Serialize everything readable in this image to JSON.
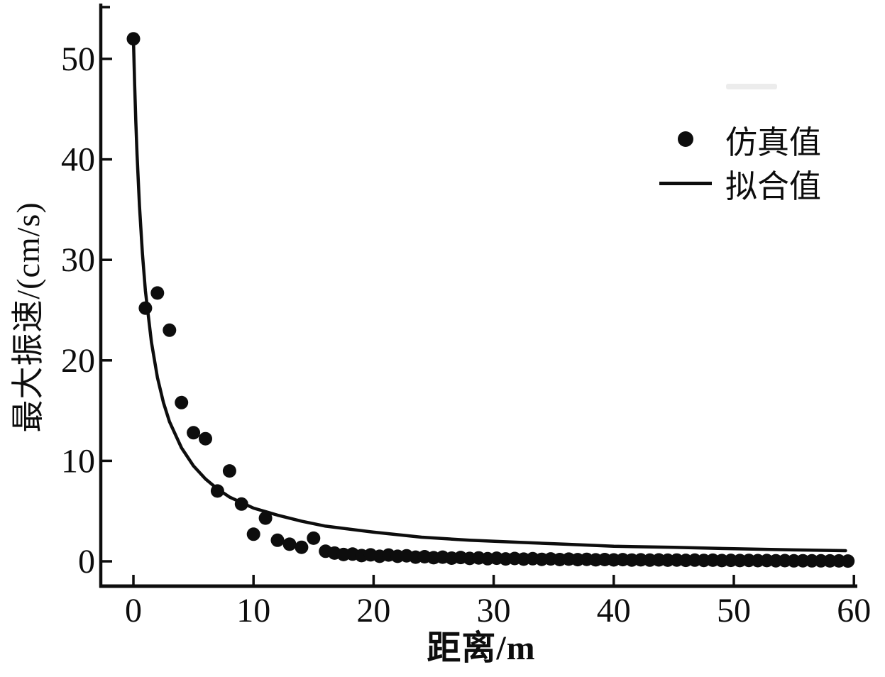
{
  "figure": {
    "background": "#ffffff",
    "ink_color": "#0d0d0d"
  },
  "chart_data": {
    "type": "scatter",
    "title": "",
    "xlabel": "距离/m",
    "ylabel": "最大振速/(cm/s)",
    "xlim": [
      -2.8,
      60.3
    ],
    "ylim": [
      -2.6,
      55.5
    ],
    "x_ticks": [
      0,
      10,
      20,
      30,
      40,
      50,
      60
    ],
    "y_ticks": [
      0,
      10,
      20,
      30,
      40,
      50
    ],
    "grid": false,
    "legend_position": "upper right",
    "series": [
      {
        "name": "仿真值",
        "type": "scatter",
        "marker": "filled-circle",
        "color": "#0d0d0d",
        "points": [
          [
            0,
            52
          ],
          [
            1,
            25.2
          ],
          [
            2,
            26.7
          ],
          [
            3,
            23.0
          ],
          [
            4,
            15.8
          ],
          [
            5,
            12.8
          ],
          [
            6,
            12.2
          ],
          [
            7,
            7.0
          ],
          [
            8,
            9.0
          ],
          [
            9,
            5.7
          ],
          [
            10,
            2.7
          ],
          [
            11,
            4.3
          ],
          [
            12,
            2.1
          ],
          [
            13,
            1.7
          ],
          [
            14,
            1.4
          ],
          [
            15,
            2.3
          ],
          [
            16,
            1.0
          ],
          [
            16.75,
            0.82
          ],
          [
            17.5,
            0.68
          ],
          [
            18.25,
            0.72
          ],
          [
            19,
            0.57
          ],
          [
            19.75,
            0.64
          ],
          [
            20.5,
            0.5
          ],
          [
            21.25,
            0.63
          ],
          [
            22,
            0.5
          ],
          [
            22.75,
            0.55
          ],
          [
            23.5,
            0.42
          ],
          [
            24.25,
            0.46
          ],
          [
            25,
            0.36
          ],
          [
            25.75,
            0.42
          ],
          [
            26.5,
            0.32
          ],
          [
            27.25,
            0.38
          ],
          [
            28,
            0.29
          ],
          [
            28.75,
            0.34
          ],
          [
            29.5,
            0.26
          ],
          [
            30.25,
            0.31
          ],
          [
            31,
            0.24
          ],
          [
            31.75,
            0.28
          ],
          [
            32.5,
            0.22
          ],
          [
            33.25,
            0.26
          ],
          [
            34,
            0.2
          ],
          [
            34.75,
            0.24
          ],
          [
            35.5,
            0.18
          ],
          [
            36.25,
            0.22
          ],
          [
            37,
            0.17
          ],
          [
            37.75,
            0.2
          ],
          [
            38.5,
            0.15
          ],
          [
            39.25,
            0.18
          ],
          [
            40,
            0.14
          ],
          [
            40.75,
            0.17
          ],
          [
            41.5,
            0.13
          ],
          [
            42.25,
            0.15
          ],
          [
            43,
            0.12
          ],
          [
            43.75,
            0.14
          ],
          [
            44.5,
            0.11
          ],
          [
            45.25,
            0.13
          ],
          [
            46,
            0.1
          ],
          [
            46.75,
            0.12
          ],
          [
            47.5,
            0.09
          ],
          [
            48.25,
            0.11
          ],
          [
            49,
            0.08
          ],
          [
            49.75,
            0.1
          ],
          [
            50.5,
            0.08
          ],
          [
            51.25,
            0.09
          ],
          [
            52,
            0.07
          ],
          [
            52.75,
            0.08
          ],
          [
            53.5,
            0.06
          ],
          [
            54.25,
            0.07
          ],
          [
            55,
            0.05
          ],
          [
            55.75,
            0.06
          ],
          [
            56.5,
            0.05
          ],
          [
            57.25,
            0.05
          ],
          [
            58,
            0.04
          ],
          [
            58.75,
            0.04
          ],
          [
            59.5,
            0.03
          ]
        ]
      },
      {
        "name": "拟合值",
        "type": "line",
        "color": "#0d0d0d",
        "fit_model": "v = 52*(1+d)^-0.95",
        "points": [
          [
            0,
            52
          ],
          [
            0.1,
            47.5
          ],
          [
            0.2,
            43.7
          ],
          [
            0.3,
            40.5
          ],
          [
            0.5,
            35.4
          ],
          [
            0.75,
            30.6
          ],
          [
            1,
            26.9
          ],
          [
            1.5,
            21.8
          ],
          [
            2,
            18.3
          ],
          [
            2.5,
            15.8
          ],
          [
            3,
            13.9
          ],
          [
            4,
            11.3
          ],
          [
            5,
            9.5
          ],
          [
            6,
            8.2
          ],
          [
            7,
            7.2
          ],
          [
            8,
            6.4
          ],
          [
            10,
            5.3
          ],
          [
            12,
            4.6
          ],
          [
            14,
            4.0
          ],
          [
            16,
            3.5
          ],
          [
            20,
            2.9
          ],
          [
            24,
            2.4
          ],
          [
            28,
            2.1
          ],
          [
            32,
            1.9
          ],
          [
            36,
            1.7
          ],
          [
            40,
            1.5
          ],
          [
            45,
            1.4
          ],
          [
            50,
            1.25
          ],
          [
            55,
            1.14
          ],
          [
            59.3,
            1.06
          ]
        ]
      }
    ]
  },
  "legend": {
    "items": [
      {
        "label": "仿真值",
        "marker": "dot"
      },
      {
        "label": "拟合值",
        "marker": "line"
      }
    ]
  }
}
